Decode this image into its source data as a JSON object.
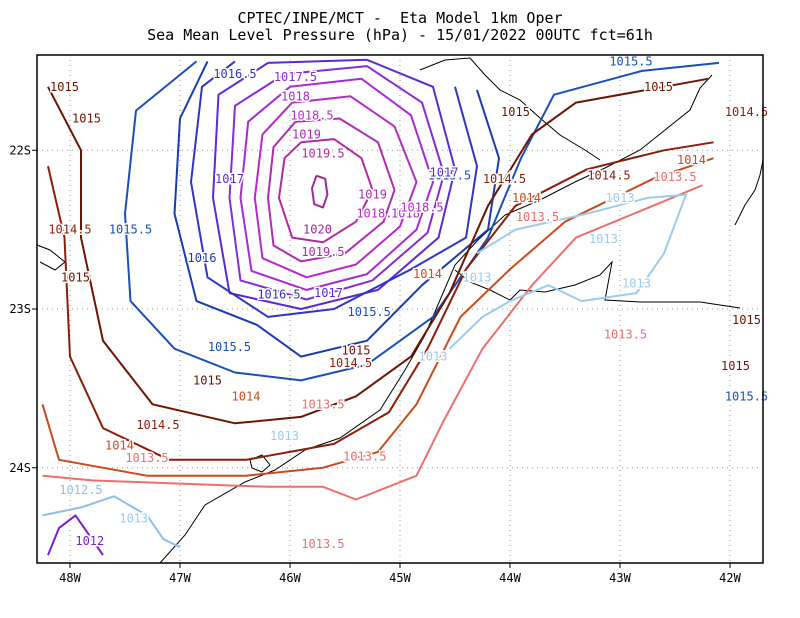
{
  "chart_data": {
    "type": "contour",
    "title_line1": "CPTEC/INPE/MCT -  Eta Model 1km Oper",
    "title_line2": "Sea Mean Level Pressure (hPa) - 15/01/2022 00UTC fct=61h",
    "xlim": [
      -48.3,
      -41.7
    ],
    "ylim": [
      -24.6,
      -21.4
    ],
    "x_ticks": [
      {
        "value": -48,
        "label": "48W"
      },
      {
        "value": -47,
        "label": "47W"
      },
      {
        "value": -46,
        "label": "46W"
      },
      {
        "value": -45,
        "label": "45W"
      },
      {
        "value": -44,
        "label": "44W"
      },
      {
        "value": -43,
        "label": "43W"
      },
      {
        "value": -42,
        "label": "42W"
      }
    ],
    "y_ticks": [
      {
        "value": -22,
        "label": "22S"
      },
      {
        "value": -23,
        "label": "23S"
      },
      {
        "value": -24,
        "label": "24S"
      }
    ],
    "grid": true,
    "level_colors": {
      "1012": "#7a1fd0",
      "1012.5": "#8fbfe8",
      "1013": "#9ccbee",
      "1013.5": "#ee6e6e",
      "1014": "#cc4a1c",
      "1014.5": "#8c1e0a",
      "1015": "#6e1400",
      "1015.5": "#1a4fb8",
      "1016": "#1a3cb0",
      "1016.5": "#2e35c8",
      "1017": "#5a2ad6",
      "1017.5": "#8a2ad6",
      "1018": "#a82ad6",
      "1018.5": "#b82ac8",
      "1019": "#b02ab6",
      "1019.5": "#b02aa6",
      "1020": "#a0289a"
    },
    "contours": [
      {
        "level": "1020",
        "points": [
          [
            -45.76,
            -22.16
          ],
          [
            -45.68,
            -22.18
          ],
          [
            -45.66,
            -22.28
          ],
          [
            -45.7,
            -22.36
          ],
          [
            -45.78,
            -22.34
          ],
          [
            -45.8,
            -22.24
          ],
          [
            -45.76,
            -22.16
          ]
        ]
      },
      {
        "level": "1019.5",
        "points": [
          [
            -45.9,
            -21.95
          ],
          [
            -45.6,
            -21.93
          ],
          [
            -45.35,
            -22.05
          ],
          [
            -45.25,
            -22.25
          ],
          [
            -45.4,
            -22.45
          ],
          [
            -45.7,
            -22.58
          ],
          [
            -45.98,
            -22.55
          ],
          [
            -46.1,
            -22.3
          ],
          [
            -46.05,
            -22.05
          ],
          [
            -45.9,
            -21.95
          ]
        ]
      },
      {
        "level": "1019",
        "points": [
          [
            -45.95,
            -21.82
          ],
          [
            -45.55,
            -21.8
          ],
          [
            -45.2,
            -21.95
          ],
          [
            -45.05,
            -22.25
          ],
          [
            -45.15,
            -22.45
          ],
          [
            -45.5,
            -22.65
          ],
          [
            -45.9,
            -22.7
          ],
          [
            -46.15,
            -22.6
          ],
          [
            -46.2,
            -22.3
          ],
          [
            -46.15,
            -21.98
          ],
          [
            -45.95,
            -21.82
          ]
        ]
      },
      {
        "level": "1018.5",
        "points": [
          [
            -45.98,
            -21.7
          ],
          [
            -45.45,
            -21.66
          ],
          [
            -45.05,
            -21.85
          ],
          [
            -44.85,
            -22.2
          ],
          [
            -45.0,
            -22.48
          ],
          [
            -45.4,
            -22.72
          ],
          [
            -45.85,
            -22.8
          ],
          [
            -46.25,
            -22.68
          ],
          [
            -46.32,
            -22.3
          ],
          [
            -46.25,
            -21.9
          ],
          [
            -45.98,
            -21.7
          ]
        ]
      },
      {
        "level": "1018",
        "points": [
          [
            -46.0,
            -21.6
          ],
          [
            -45.35,
            -21.55
          ],
          [
            -44.9,
            -21.78
          ],
          [
            -44.7,
            -22.2
          ],
          [
            -44.85,
            -22.5
          ],
          [
            -45.3,
            -22.78
          ],
          [
            -45.85,
            -22.88
          ],
          [
            -46.35,
            -22.76
          ],
          [
            -46.45,
            -22.3
          ],
          [
            -46.38,
            -21.82
          ],
          [
            -46.0,
            -21.6
          ]
        ]
      },
      {
        "level": "1017.5",
        "points": [
          [
            -46.05,
            -21.52
          ],
          [
            -45.3,
            -21.47
          ],
          [
            -44.8,
            -21.7
          ],
          [
            -44.6,
            -22.15
          ],
          [
            -44.75,
            -22.52
          ],
          [
            -45.25,
            -22.82
          ],
          [
            -45.85,
            -22.94
          ],
          [
            -46.45,
            -22.82
          ],
          [
            -46.55,
            -22.3
          ],
          [
            -46.5,
            -21.72
          ],
          [
            -46.05,
            -21.52
          ]
        ]
      },
      {
        "level": "1017",
        "points": [
          [
            -46.2,
            -21.45
          ],
          [
            -45.3,
            -21.43
          ],
          [
            -44.7,
            -21.6
          ],
          [
            -44.5,
            -22.12
          ],
          [
            -44.65,
            -22.55
          ],
          [
            -45.2,
            -22.88
          ],
          [
            -45.9,
            -23.0
          ],
          [
            -46.55,
            -22.9
          ],
          [
            -46.7,
            -22.3
          ],
          [
            -46.65,
            -21.65
          ],
          [
            -46.2,
            -21.45
          ]
        ]
      },
      {
        "level": "1016.5",
        "points": [
          [
            -46.5,
            -21.44
          ],
          [
            -46.8,
            -21.6
          ],
          [
            -46.9,
            -22.2
          ],
          [
            -46.75,
            -22.8
          ],
          [
            -46.2,
            -23.05
          ],
          [
            -45.6,
            -23.0
          ],
          [
            -44.9,
            -22.75
          ],
          [
            -44.4,
            -22.55
          ],
          [
            -44.3,
            -22.1
          ],
          [
            -44.5,
            -21.6
          ]
        ]
      },
      {
        "level": "1016",
        "points": [
          [
            -46.75,
            -21.44
          ],
          [
            -47.0,
            -21.8
          ],
          [
            -47.05,
            -22.4
          ],
          [
            -46.85,
            -22.95
          ],
          [
            -46.3,
            -23.1
          ],
          [
            -45.9,
            -23.3
          ],
          [
            -45.3,
            -23.2
          ],
          [
            -44.8,
            -22.85
          ],
          [
            -44.2,
            -22.5
          ],
          [
            -44.1,
            -22.05
          ],
          [
            -44.3,
            -21.62
          ]
        ]
      },
      {
        "level": "1015.5",
        "points": [
          [
            -46.85,
            -21.44
          ],
          [
            -47.4,
            -21.75
          ],
          [
            -47.5,
            -22.4
          ],
          [
            -47.45,
            -22.95
          ],
          [
            -47.05,
            -23.25
          ],
          [
            -46.5,
            -23.4
          ],
          [
            -45.9,
            -23.45
          ],
          [
            -45.3,
            -23.35
          ],
          [
            -44.7,
            -23.05
          ],
          [
            -44.2,
            -22.55
          ],
          [
            -43.9,
            -22.05
          ],
          [
            -43.6,
            -21.65
          ],
          [
            -42.8,
            -21.5
          ],
          [
            -42.1,
            -21.45
          ]
        ]
      },
      {
        "level": "1015",
        "points": [
          [
            -48.2,
            -21.6
          ],
          [
            -47.9,
            -22.0
          ],
          [
            -47.9,
            -22.55
          ],
          [
            -47.7,
            -23.2
          ],
          [
            -47.25,
            -23.6
          ],
          [
            -46.5,
            -23.72
          ],
          [
            -45.9,
            -23.68
          ],
          [
            -45.4,
            -23.55
          ],
          [
            -44.9,
            -23.3
          ],
          [
            -44.55,
            -22.9
          ],
          [
            -44.2,
            -22.35
          ],
          [
            -43.8,
            -21.9
          ],
          [
            -43.4,
            -21.7
          ],
          [
            -42.6,
            -21.6
          ],
          [
            -42.2,
            -21.55
          ]
        ]
      },
      {
        "level": "1014.5",
        "points": [
          [
            -48.2,
            -22.1
          ],
          [
            -48.05,
            -22.55
          ],
          [
            -48.0,
            -23.3
          ],
          [
            -47.7,
            -23.75
          ],
          [
            -47.1,
            -23.95
          ],
          [
            -46.4,
            -23.95
          ],
          [
            -45.6,
            -23.85
          ],
          [
            -45.1,
            -23.65
          ],
          [
            -44.75,
            -23.25
          ],
          [
            -44.4,
            -22.75
          ],
          [
            -43.95,
            -22.35
          ],
          [
            -43.3,
            -22.12
          ],
          [
            -42.6,
            -22.0
          ],
          [
            -42.15,
            -21.95
          ]
        ]
      },
      {
        "level": "1014",
        "points": [
          [
            -48.25,
            -23.6
          ],
          [
            -48.1,
            -23.95
          ],
          [
            -47.3,
            -24.05
          ],
          [
            -46.4,
            -24.05
          ],
          [
            -45.7,
            -24.0
          ],
          [
            -45.2,
            -23.9
          ],
          [
            -44.85,
            -23.6
          ],
          [
            -44.45,
            -23.05
          ],
          [
            -44.0,
            -22.75
          ],
          [
            -43.5,
            -22.45
          ],
          [
            -42.7,
            -22.18
          ],
          [
            -42.15,
            -22.05
          ]
        ]
      },
      {
        "level": "1013.5",
        "points": [
          [
            -48.25,
            -24.05
          ],
          [
            -47.8,
            -24.08
          ],
          [
            -47.0,
            -24.1
          ],
          [
            -46.2,
            -24.12
          ],
          [
            -45.7,
            -24.12
          ],
          [
            -45.4,
            -24.2
          ],
          [
            -44.85,
            -24.05
          ],
          [
            -44.6,
            -23.7
          ],
          [
            -44.25,
            -23.25
          ],
          [
            -43.8,
            -22.85
          ],
          [
            -43.4,
            -22.55
          ],
          [
            -42.7,
            -22.35
          ],
          [
            -42.25,
            -22.22
          ]
        ]
      },
      {
        "level": "1013",
        "points": [
          [
            -44.3,
            -22.65
          ],
          [
            -43.95,
            -22.5
          ],
          [
            -43.3,
            -22.4
          ],
          [
            -42.75,
            -22.3
          ],
          [
            -42.4,
            -22.28
          ],
          [
            -42.6,
            -22.65
          ],
          [
            -42.85,
            -22.9
          ],
          [
            -43.35,
            -22.95
          ],
          [
            -43.65,
            -22.85
          ],
          [
            -44.0,
            -22.95
          ],
          [
            -44.25,
            -23.05
          ],
          [
            -44.55,
            -23.25
          ]
        ]
      },
      {
        "level": "1012.5",
        "points": [
          [
            -48.25,
            -24.3
          ],
          [
            -47.9,
            -24.25
          ],
          [
            -47.6,
            -24.18
          ],
          [
            -47.3,
            -24.3
          ],
          [
            -47.15,
            -24.45
          ],
          [
            -47.0,
            -24.5
          ]
        ]
      },
      {
        "level": "1012",
        "points": [
          [
            -48.2,
            -24.55
          ],
          [
            -48.1,
            -24.38
          ],
          [
            -47.95,
            -24.3
          ],
          [
            -47.8,
            -24.45
          ],
          [
            -47.7,
            -24.55
          ]
        ]
      }
    ],
    "labels": [
      {
        "text": "1015",
        "x": -48.05,
        "y": -21.6
      },
      {
        "text": "1015",
        "x": -47.85,
        "y": -21.8
      },
      {
        "text": "1015",
        "x": -47.95,
        "y": -22.8
      },
      {
        "text": "1014.5",
        "x": -48.0,
        "y": -22.5
      },
      {
        "text": "1015.5",
        "x": -47.45,
        "y": -22.5
      },
      {
        "text": "1016",
        "x": -46.8,
        "y": -22.68
      },
      {
        "text": "1017",
        "x": -46.55,
        "y": -22.18
      },
      {
        "text": "1016.5",
        "x": -46.5,
        "y": -21.52
      },
      {
        "text": "1017.5",
        "x": -45.95,
        "y": -21.54
      },
      {
        "text": "1018",
        "x": -45.95,
        "y": -21.66
      },
      {
        "text": "1018.5",
        "x": -45.8,
        "y": -21.78
      },
      {
        "text": "1019",
        "x": -45.85,
        "y": -21.9
      },
      {
        "text": "1019.5",
        "x": -45.7,
        "y": -22.02
      },
      {
        "text": "1020",
        "x": -45.75,
        "y": -22.5
      },
      {
        "text": "1019",
        "x": -45.25,
        "y": -22.28
      },
      {
        "text": "1018.5",
        "x": -45.2,
        "y": -22.4
      },
      {
        "text": "1019.5",
        "x": -45.7,
        "y": -22.64
      },
      {
        "text": "1016.5",
        "x": -46.1,
        "y": -22.91
      },
      {
        "text": "1017",
        "x": -45.65,
        "y": -22.9
      },
      {
        "text": "1015.5",
        "x": -45.28,
        "y": -23.02
      },
      {
        "text": "1015.5",
        "x": -46.55,
        "y": -23.24
      },
      {
        "text": "1015",
        "x": -46.75,
        "y": -23.45
      },
      {
        "text": "1015",
        "x": -45.4,
        "y": -23.26
      },
      {
        "text": "1014.5",
        "x": -45.45,
        "y": -23.34
      },
      {
        "text": "1014",
        "x": -44.75,
        "y": -22.78
      },
      {
        "text": "1014",
        "x": -46.4,
        "y": -23.55
      },
      {
        "text": "1013.5",
        "x": -45.7,
        "y": -23.6
      },
      {
        "text": "1014.5",
        "x": -47.2,
        "y": -23.73
      },
      {
        "text": "1014",
        "x": -47.55,
        "y": -23.86
      },
      {
        "text": "1013.5",
        "x": -47.3,
        "y": -23.94
      },
      {
        "text": "1013.5",
        "x": -45.32,
        "y": -23.93
      },
      {
        "text": "1013",
        "x": -46.05,
        "y": -23.8
      },
      {
        "text": "1012.5",
        "x": -47.9,
        "y": -24.14
      },
      {
        "text": "1013",
        "x": -47.42,
        "y": -24.32
      },
      {
        "text": "1012",
        "x": -47.82,
        "y": -24.46
      },
      {
        "text": "1013.5",
        "x": -45.7,
        "y": -24.48
      },
      {
        "text": "1013",
        "x": -44.7,
        "y": -23.3
      },
      {
        "text": "1013",
        "x": -44.3,
        "y": -22.8
      },
      {
        "text": "1013",
        "x": -43.15,
        "y": -22.56
      },
      {
        "text": "1013",
        "x": -42.85,
        "y": -22.84
      },
      {
        "text": "1013",
        "x": -43.0,
        "y": -22.3
      },
      {
        "text": "1013.5",
        "x": -42.95,
        "y": -23.16
      },
      {
        "text": "1013.5",
        "x": -43.75,
        "y": -22.42
      },
      {
        "text": "1013.5",
        "x": -42.5,
        "y": -22.17
      },
      {
        "text": "1014",
        "x": -43.85,
        "y": -22.3
      },
      {
        "text": "1014",
        "x": -42.35,
        "y": -22.06
      },
      {
        "text": "1014.5",
        "x": -44.05,
        "y": -22.18
      },
      {
        "text": "1014.5",
        "x": -43.1,
        "y": -22.16
      },
      {
        "text": "1014.5",
        "x": -41.85,
        "y": -21.76
      },
      {
        "text": "1015",
        "x": -43.95,
        "y": -21.76
      },
      {
        "text": "1015",
        "x": -42.65,
        "y": -21.6
      },
      {
        "text": "1015",
        "x": -41.85,
        "y": -23.07
      },
      {
        "text": "1015",
        "x": -41.95,
        "y": -23.36
      },
      {
        "text": "1015.5",
        "x": -42.9,
        "y": -21.44
      },
      {
        "text": "1015.5",
        "x": -44.55,
        "y": -22.16
      },
      {
        "text": "1015.5",
        "x": -41.85,
        "y": -23.55
      },
      {
        "text": "1017",
        "x": -44.6,
        "y": -22.14
      },
      {
        "text": "1018",
        "x": -44.95,
        "y": -22.4
      },
      {
        "text": "1018.5",
        "x": -44.8,
        "y": -22.36
      }
    ]
  }
}
